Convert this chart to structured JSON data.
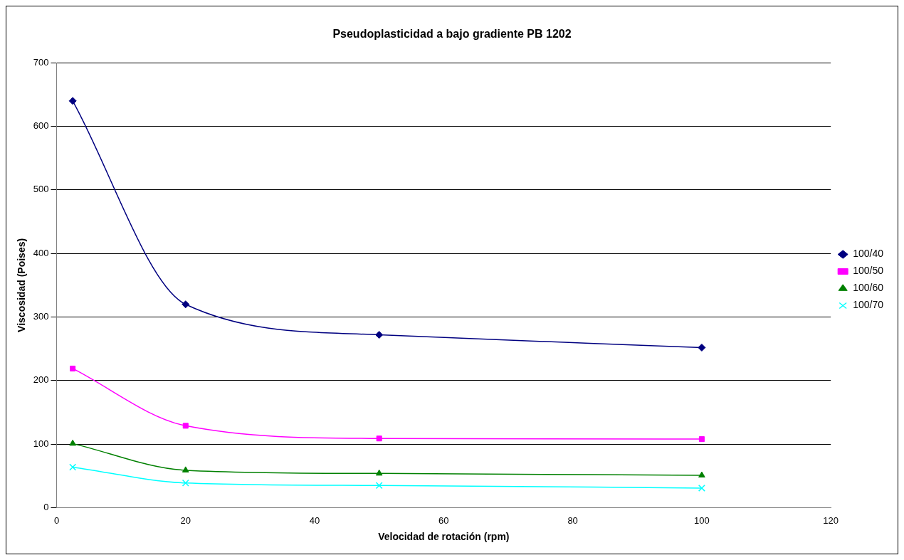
{
  "chart_data": {
    "type": "line",
    "title": "Pseudoplasticidad a bajo gradiente PB 1202",
    "xlabel": "Velocidad de rotación (rpm)",
    "ylabel": "Viscosidad (Poises)",
    "xlim": [
      0,
      120
    ],
    "xticks": [
      0,
      20,
      40,
      60,
      80,
      100,
      120
    ],
    "ylim": [
      0,
      700
    ],
    "yticks": [
      0,
      100,
      200,
      300,
      400,
      500,
      600,
      700
    ],
    "grid": "y",
    "legend": "right",
    "series": [
      {
        "name": "100/40",
        "color": "#000080",
        "marker": "diamond",
        "x": [
          2.5,
          20,
          50,
          100
        ],
        "values": [
          640,
          320,
          272,
          252
        ]
      },
      {
        "name": "100/50",
        "color": "#ff00ff",
        "marker": "square",
        "x": [
          2.5,
          20,
          50,
          100
        ],
        "values": [
          219,
          129,
          109,
          108
        ]
      },
      {
        "name": "100/60",
        "color": "#008000",
        "marker": "triangle",
        "x": [
          2.5,
          20,
          50,
          100
        ],
        "values": [
          101,
          59,
          54,
          51
        ]
      },
      {
        "name": "100/70",
        "color": "#00ffff",
        "marker": "cross",
        "x": [
          2.5,
          20,
          50,
          100
        ],
        "values": [
          64,
          39,
          35,
          31
        ]
      }
    ]
  }
}
